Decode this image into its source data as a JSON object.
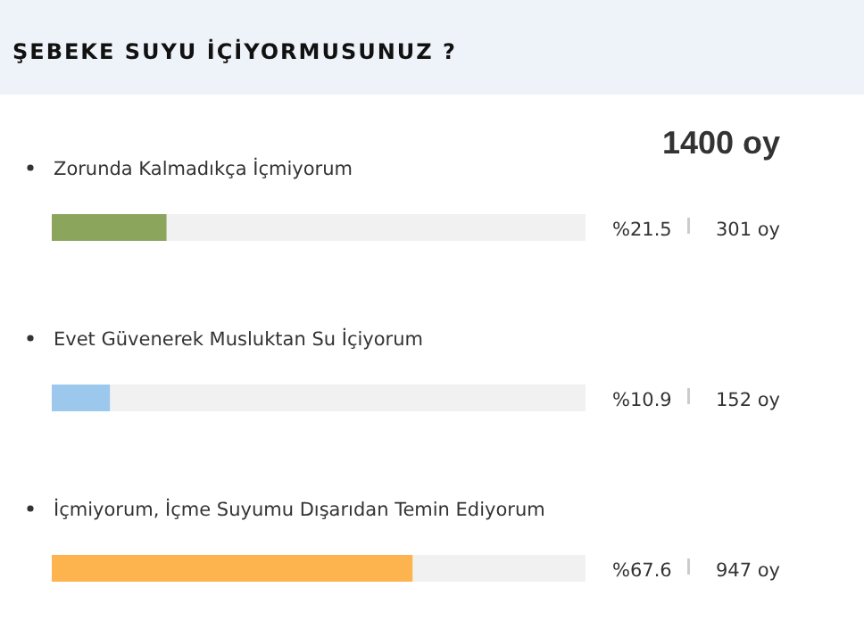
{
  "chart_data": {
    "type": "bar",
    "orientation": "horizontal",
    "title": "ŞEBEKE SUYU İÇİYORMUSUNUZ ?",
    "categories": [
      "Zorunda Kalmadıkça İçmiyorum",
      "Evet Güvenerek Musluktan Su İçiyorum",
      "İçmiyorum, İçme Suyumu Dışarıdan Temin Ediyorum"
    ],
    "values": [
      21.5,
      10.9,
      67.6
    ],
    "colors": [
      "#8ba65c",
      "#9cc8ee",
      "#fdb44e"
    ],
    "xlim": [
      0,
      100
    ],
    "tick_labels": "y",
    "value_labels": [
      "%21.5",
      "%10.9",
      "%67.6"
    ],
    "annotations": [
      "1400 oy",
      "301 oy",
      "152 oy",
      "947 oy"
    ]
  }
}
